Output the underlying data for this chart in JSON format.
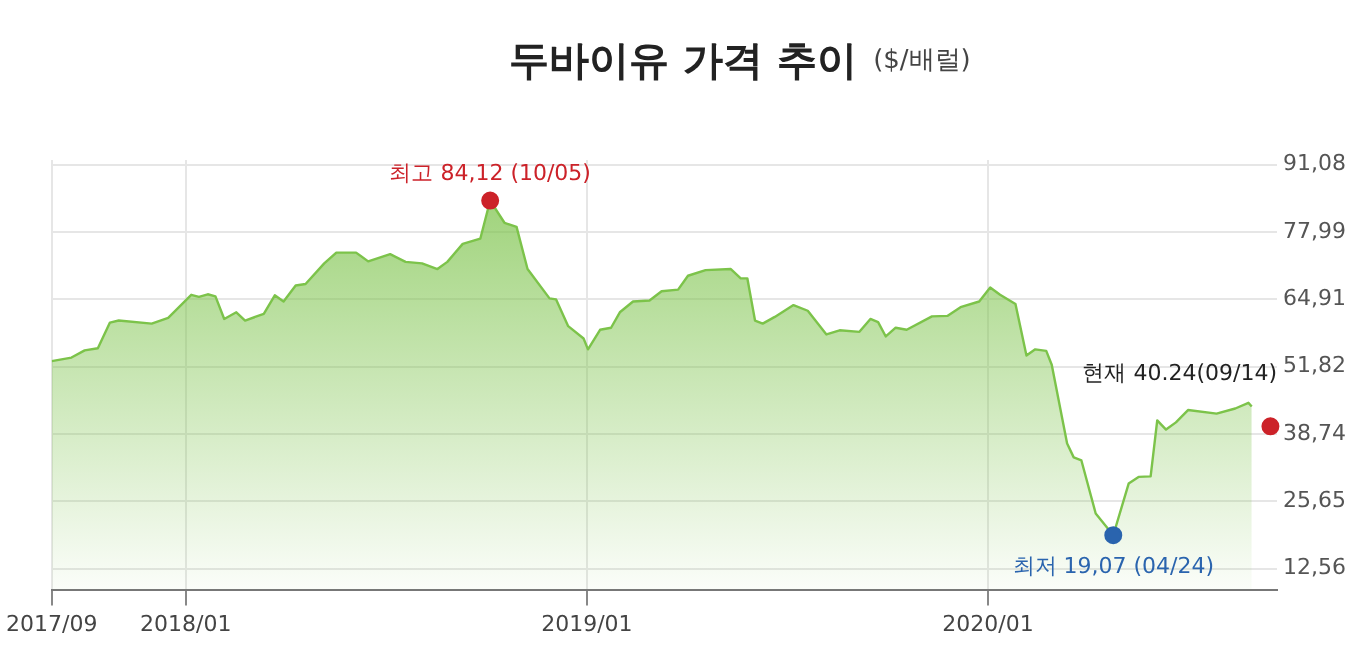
{
  "chart_data": {
    "type": "area",
    "title": "두바이유 가격 추이",
    "subtitle": "($/배럴)",
    "xlim": [
      "2017-09-01",
      "2020-09-20"
    ],
    "xticks": [
      {
        "value": "2017-09",
        "label": "2017/09"
      },
      {
        "value": "2018-01",
        "label": "2018/01"
      },
      {
        "value": "2019-01",
        "label": "2019/01"
      },
      {
        "value": "2020-01",
        "label": "2020/01"
      }
    ],
    "ylim": [
      8.5,
      92
    ],
    "yticks": [
      {
        "value": 12.56,
        "label": "12,56"
      },
      {
        "value": 25.65,
        "label": "25,65"
      },
      {
        "value": 38.74,
        "label": "38,74"
      },
      {
        "value": 51.82,
        "label": "51,82"
      },
      {
        "value": 64.91,
        "label": "64,91"
      },
      {
        "value": 77.99,
        "label": "77,99"
      },
      {
        "value": 91.08,
        "label": "91,08"
      }
    ],
    "grid": true,
    "legend": false,
    "series": [
      {
        "type": "area",
        "color": "#7cc34a",
        "x": [
          "2017-09-01",
          "2017-09-19",
          "2017-10-01",
          "2017-10-13",
          "2017-10-24",
          "2017-11-01",
          "2017-12-01",
          "2017-12-16",
          "2018-01-06",
          "2018-01-13",
          "2018-01-21",
          "2018-01-28",
          "2018-02-05",
          "2018-02-16",
          "2018-02-24",
          "2018-03-13",
          "2018-03-23",
          "2018-03-31",
          "2018-04-11",
          "2018-04-20",
          "2018-05-07",
          "2018-05-18",
          "2018-06-05",
          "2018-06-16",
          "2018-07-06",
          "2018-07-20",
          "2018-08-04",
          "2018-08-18",
          "2018-08-27",
          "2018-09-10",
          "2018-09-26",
          "2018-10-05",
          "2018-10-18",
          "2018-10-29",
          "2018-11-08",
          "2018-11-28",
          "2018-12-04",
          "2018-12-15",
          "2018-12-29",
          "2019-01-02",
          "2019-01-13",
          "2019-01-23",
          "2019-01-31",
          "2019-02-12",
          "2019-02-27",
          "2019-03-10",
          "2019-03-25",
          "2019-04-03",
          "2019-04-19",
          "2019-05-12",
          "2019-05-21",
          "2019-05-27",
          "2019-06-03",
          "2019-06-10",
          "2019-06-21",
          "2019-07-08",
          "2019-07-21",
          "2019-08-07",
          "2019-08-19",
          "2019-09-06",
          "2019-09-16",
          "2019-09-23",
          "2019-09-30",
          "2019-10-09",
          "2019-10-19",
          "2019-11-11",
          "2019-11-25",
          "2019-12-07",
          "2019-12-24",
          "2020-01-03",
          "2020-01-12",
          "2020-01-26",
          "2020-02-05",
          "2020-02-13",
          "2020-02-23",
          "2020-02-28",
          "2020-03-13",
          "2020-03-19",
          "2020-03-26",
          "2020-04-08",
          "2020-04-24",
          "2020-05-08",
          "2020-05-17",
          "2020-05-28",
          "2020-06-03",
          "2020-06-11",
          "2020-06-20",
          "2020-07-01",
          "2020-07-27",
          "2020-08-13",
          "2020-08-25",
          "2020-08-28"
        ],
        "values": [
          52.9,
          53.6,
          55.0,
          55.4,
          60.4,
          60.8,
          60.2,
          61.3,
          65.8,
          65.4,
          65.9,
          65.5,
          61.1,
          62.4,
          60.8,
          62.1,
          65.7,
          64.5,
          67.6,
          67.9,
          71.9,
          74.0,
          74.0,
          72.3,
          73.7,
          72.2,
          71.9,
          70.8,
          72.2,
          75.7,
          76.7,
          84.12,
          79.8,
          79.0,
          70.8,
          65.1,
          64.9,
          59.7,
          57.3,
          55.2,
          59.0,
          59.4,
          62.4,
          64.5,
          64.7,
          66.5,
          66.8,
          69.5,
          70.6,
          70.8,
          69.0,
          69.0,
          60.8,
          60.2,
          61.5,
          63.8,
          62.7,
          58.1,
          58.9,
          58.6,
          61.1,
          60.5,
          57.7,
          59.4,
          59.0,
          61.6,
          61.7,
          63.4,
          64.5,
          67.2,
          65.8,
          64.0,
          54.0,
          55.2,
          54.9,
          52.2,
          36.9,
          34.2,
          33.6,
          23.3,
          19.07,
          29.1,
          30.4,
          30.5,
          41.4,
          39.6,
          41.0,
          43.4,
          42.7,
          43.7,
          44.8,
          44.1
        ]
      },
      {
        "type": "scatter",
        "marker": "circle",
        "x": [
          "2018-10-05",
          "2020-04-24",
          "2020-09-14"
        ],
        "values": [
          84.12,
          19.07,
          40.24
        ],
        "colors": [
          "#cc2229",
          "#2a64ae",
          "#cc2229"
        ]
      }
    ],
    "annotations": [
      {
        "text": "최고 84,12 (10/05)",
        "x": "2018-10-05",
        "y": 84.12
      },
      {
        "text": "최저 19,07 (04/24)",
        "x": "2020-04-24",
        "y": 19.07
      },
      {
        "text": "현재 40.24(09/14)",
        "x": "2020-09-14",
        "y": 40.24
      }
    ]
  }
}
